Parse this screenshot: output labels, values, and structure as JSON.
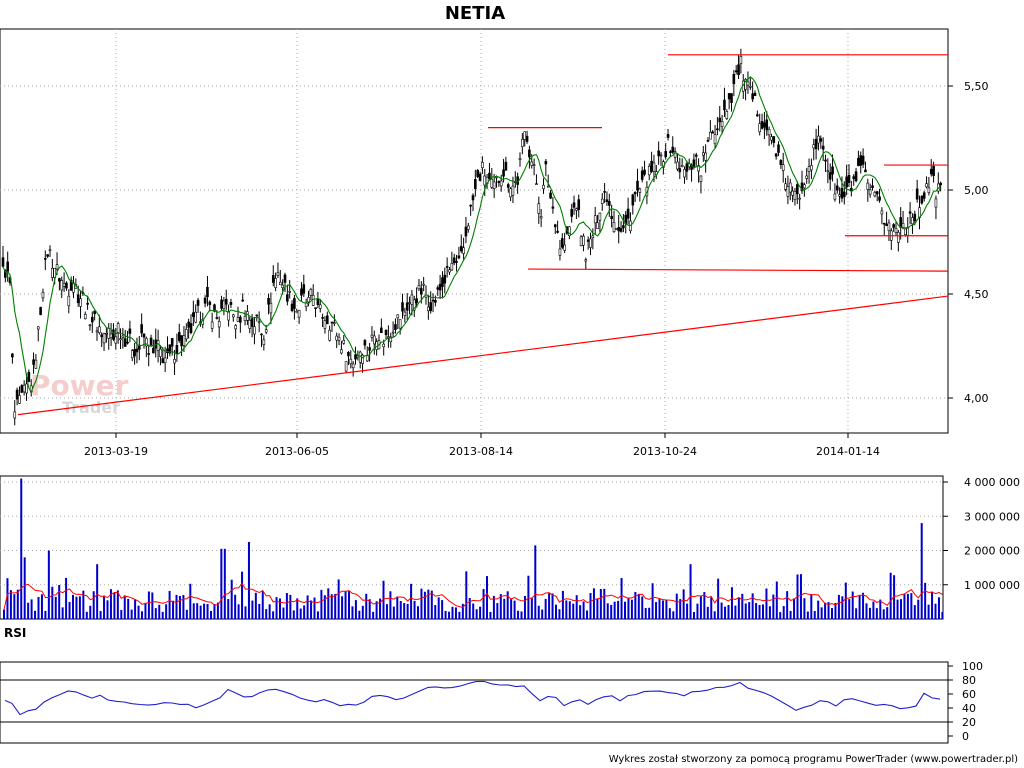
{
  "watermark": {
    "brand_top": "Power",
    "brand_bottom": "Trader"
  },
  "footer": "Wykres został stworzony za pomocą programu PowerTrader (www.powertrader.pl)",
  "colors": {
    "candle": "#000000",
    "ma": "#008000",
    "resistance": "#ff0000",
    "volume": "#0000cc",
    "volume_ma": "#ff0000",
    "rsi": "#2222cc",
    "grid": "#aaaaaa"
  },
  "chart_data": [
    {
      "type": "candlestick",
      "title": "NETIA",
      "x_ticks": [
        "2013-03-19",
        "2013-06-05",
        "2013-08-14",
        "2013-10-24",
        "2014-01-14"
      ],
      "y_ticks": [
        "4,00",
        "4,50",
        "5,00",
        "5,50"
      ],
      "ylim": [
        3.85,
        5.7
      ],
      "grid": true,
      "price_path": [
        [
          0,
          4.58
        ],
        [
          5,
          4.62
        ],
        [
          10,
          4.55
        ],
        [
          14,
          3.92
        ],
        [
          17,
          3.95
        ],
        [
          22,
          4.0
        ],
        [
          27,
          4.05
        ],
        [
          33,
          4.1
        ],
        [
          38,
          4.3
        ],
        [
          43,
          4.55
        ],
        [
          48,
          4.72
        ],
        [
          53,
          4.65
        ],
        [
          58,
          4.6
        ],
        [
          63,
          4.55
        ],
        [
          68,
          4.52
        ],
        [
          73,
          4.58
        ],
        [
          78,
          4.5
        ],
        [
          83,
          4.48
        ],
        [
          88,
          4.4
        ],
        [
          93,
          4.38
        ],
        [
          98,
          4.35
        ],
        [
          103,
          4.3
        ],
        [
          108,
          4.32
        ],
        [
          113,
          4.28
        ],
        [
          118,
          4.35
        ],
        [
          123,
          4.3
        ],
        [
          128,
          4.28
        ],
        [
          133,
          4.25
        ],
        [
          138,
          4.22
        ],
        [
          143,
          4.3
        ],
        [
          148,
          4.25
        ],
        [
          153,
          4.2
        ],
        [
          158,
          4.24
        ],
        [
          163,
          4.2
        ],
        [
          168,
          4.18
        ],
        [
          173,
          4.22
        ],
        [
          178,
          4.25
        ],
        [
          183,
          4.28
        ],
        [
          188,
          4.3
        ],
        [
          193,
          4.35
        ],
        [
          198,
          4.4
        ],
        [
          203,
          4.42
        ],
        [
          208,
          4.45
        ],
        [
          213,
          4.4
        ],
        [
          218,
          4.38
        ],
        [
          223,
          4.42
        ],
        [
          228,
          4.45
        ],
        [
          233,
          4.4
        ],
        [
          238,
          4.35
        ],
        [
          243,
          4.45
        ],
        [
          248,
          4.4
        ],
        [
          253,
          4.35
        ],
        [
          258,
          4.38
        ],
        [
          263,
          4.3
        ],
        [
          268,
          4.4
        ],
        [
          273,
          4.55
        ],
        [
          278,
          4.6
        ],
        [
          283,
          4.55
        ],
        [
          288,
          4.5
        ],
        [
          293,
          4.45
        ],
        [
          298,
          4.42
        ],
        [
          303,
          4.48
        ],
        [
          308,
          4.45
        ],
        [
          313,
          4.5
        ],
        [
          318,
          4.42
        ],
        [
          323,
          4.4
        ],
        [
          328,
          4.38
        ],
        [
          333,
          4.35
        ],
        [
          338,
          4.3
        ],
        [
          343,
          4.25
        ],
        [
          348,
          4.2
        ],
        [
          353,
          4.18
        ],
        [
          358,
          4.22
        ],
        [
          363,
          4.25
        ],
        [
          368,
          4.22
        ],
        [
          373,
          4.3
        ],
        [
          378,
          4.32
        ],
        [
          383,
          4.28
        ],
        [
          388,
          4.3
        ],
        [
          393,
          4.35
        ],
        [
          398,
          4.38
        ],
        [
          403,
          4.4
        ],
        [
          408,
          4.45
        ],
        [
          413,
          4.48
        ],
        [
          418,
          4.5
        ],
        [
          423,
          4.52
        ],
        [
          428,
          4.48
        ],
        [
          433,
          4.45
        ],
        [
          438,
          4.5
        ],
        [
          443,
          4.55
        ],
        [
          448,
          4.6
        ],
        [
          453,
          4.65
        ],
        [
          458,
          4.62
        ],
        [
          463,
          4.7
        ],
        [
          468,
          4.85
        ],
        [
          473,
          4.95
        ],
        [
          478,
          5.05
        ],
        [
          483,
          5.1
        ],
        [
          488,
          5.05
        ],
        [
          493,
          5.0
        ],
        [
          498,
          5.05
        ],
        [
          503,
          5.1
        ],
        [
          508,
          5.05
        ],
        [
          513,
          5.02
        ],
        [
          518,
          5.05
        ],
        [
          522,
          5.2
        ],
        [
          526,
          5.3
        ],
        [
          531,
          5.15
        ],
        [
          536,
          5.05
        ],
        [
          541,
          4.9
        ],
        [
          546,
          5.1
        ],
        [
          551,
          4.95
        ],
        [
          556,
          4.85
        ],
        [
          561,
          4.7
        ],
        [
          566,
          4.75
        ],
        [
          571,
          4.85
        ],
        [
          576,
          4.95
        ],
        [
          581,
          4.8
        ],
        [
          586,
          4.7
        ],
        [
          591,
          4.75
        ],
        [
          596,
          4.85
        ],
        [
          601,
          4.95
        ],
        [
          606,
          5.0
        ],
        [
          611,
          4.9
        ],
        [
          616,
          4.85
        ],
        [
          621,
          4.8
        ],
        [
          626,
          4.82
        ],
        [
          631,
          4.9
        ],
        [
          636,
          4.98
        ],
        [
          641,
          5.0
        ],
        [
          646,
          5.05
        ],
        [
          651,
          5.08
        ],
        [
          656,
          5.1
        ],
        [
          661,
          5.15
        ],
        [
          666,
          5.2
        ],
        [
          671,
          5.22
        ],
        [
          676,
          5.15
        ],
        [
          681,
          5.1
        ],
        [
          686,
          5.08
        ],
        [
          691,
          5.12
        ],
        [
          696,
          5.15
        ],
        [
          701,
          5.1
        ],
        [
          706,
          5.2
        ],
        [
          711,
          5.25
        ],
        [
          716,
          5.3
        ],
        [
          721,
          5.35
        ],
        [
          726,
          5.4
        ],
        [
          731,
          5.45
        ],
        [
          736,
          5.55
        ],
        [
          741,
          5.6
        ],
        [
          746,
          5.5
        ],
        [
          751,
          5.45
        ],
        [
          756,
          5.4
        ],
        [
          761,
          5.35
        ],
        [
          766,
          5.3
        ],
        [
          771,
          5.25
        ],
        [
          776,
          5.2
        ],
        [
          781,
          5.1
        ],
        [
          786,
          5.05
        ],
        [
          791,
          5.0
        ],
        [
          796,
          4.95
        ],
        [
          801,
          5.0
        ],
        [
          806,
          5.1
        ],
        [
          811,
          5.15
        ],
        [
          816,
          5.2
        ],
        [
          821,
          5.25
        ],
        [
          826,
          5.15
        ],
        [
          831,
          5.05
        ],
        [
          836,
          5.0
        ],
        [
          841,
          4.95
        ],
        [
          846,
          4.98
        ],
        [
          851,
          5.02
        ],
        [
          856,
          5.05
        ],
        [
          861,
          5.1
        ],
        [
          866,
          5.05
        ],
        [
          871,
          4.98
        ],
        [
          876,
          4.95
        ],
        [
          881,
          4.9
        ],
        [
          886,
          4.85
        ],
        [
          891,
          4.82
        ],
        [
          896,
          4.8
        ],
        [
          901,
          4.82
        ],
        [
          906,
          4.85
        ],
        [
          911,
          4.88
        ],
        [
          916,
          4.9
        ],
        [
          921,
          4.95
        ],
        [
          926,
          5.02
        ],
        [
          931,
          5.05
        ],
        [
          936,
          5.0
        ],
        [
          942,
          5.0
        ]
      ],
      "resistance_lines": [
        {
          "from": [
            488,
            5.3
          ],
          "to": [
            602,
            5.3
          ]
        },
        {
          "from": [
            668,
            5.65
          ],
          "to": [
            948,
            5.65
          ]
        },
        {
          "from": [
            528,
            4.62
          ],
          "to": [
            948,
            4.61
          ]
        },
        {
          "from": [
            845,
            4.78
          ],
          "to": [
            948,
            4.78
          ]
        },
        {
          "from": [
            884,
            5.12
          ],
          "to": [
            948,
            5.12
          ]
        },
        {
          "from": [
            18,
            3.92
          ],
          "to": [
            948,
            4.49
          ]
        }
      ]
    },
    {
      "type": "bar",
      "title": "",
      "y_ticks": [
        "1 000 000",
        "2 000 000",
        "3 000 000",
        "4 000 000"
      ],
      "ylim": [
        0,
        4300000
      ],
      "peaks": [
        [
          22,
          4100000
        ],
        [
          24,
          1800000
        ],
        [
          50,
          2000000
        ],
        [
          66,
          1200000
        ],
        [
          98,
          1600000
        ],
        [
          223,
          2050000
        ],
        [
          249,
          2250000
        ],
        [
          536,
          2150000
        ],
        [
          691,
          1600000
        ],
        [
          796,
          1300000
        ],
        [
          921,
          2800000
        ],
        [
          931,
          800000
        ]
      ],
      "baseline_range": [
        200000,
        900000
      ],
      "volume_ma_range": [
        300000,
        1100000
      ]
    },
    {
      "type": "line",
      "title": "RSI",
      "y_ticks": [
        "0",
        "20",
        "40",
        "60",
        "80",
        "100"
      ],
      "ylim": [
        0,
        100
      ],
      "reference_lines": [
        20,
        80
      ],
      "series": [
        [
          5,
          52
        ],
        [
          12,
          45
        ],
        [
          20,
          32
        ],
        [
          28,
          35
        ],
        [
          36,
          40
        ],
        [
          44,
          48
        ],
        [
          52,
          55
        ],
        [
          60,
          60
        ],
        [
          68,
          65
        ],
        [
          76,
          62
        ],
        [
          84,
          58
        ],
        [
          92,
          55
        ],
        [
          100,
          60
        ],
        [
          108,
          53
        ],
        [
          116,
          48
        ],
        [
          124,
          50
        ],
        [
          132,
          46
        ],
        [
          140,
          45
        ],
        [
          148,
          44
        ],
        [
          156,
          46
        ],
        [
          164,
          48
        ],
        [
          172,
          46
        ],
        [
          180,
          47
        ],
        [
          188,
          44
        ],
        [
          196,
          42
        ],
        [
          204,
          45
        ],
        [
          212,
          50
        ],
        [
          220,
          55
        ],
        [
          228,
          65
        ],
        [
          236,
          60
        ],
        [
          244,
          56
        ],
        [
          252,
          55
        ],
        [
          260,
          60
        ],
        [
          268,
          66
        ],
        [
          276,
          68
        ],
        [
          284,
          62
        ],
        [
          292,
          58
        ],
        [
          300,
          55
        ],
        [
          308,
          52
        ],
        [
          316,
          50
        ],
        [
          324,
          54
        ],
        [
          332,
          48
        ],
        [
          340,
          42
        ],
        [
          348,
          46
        ],
        [
          356,
          44
        ],
        [
          364,
          50
        ],
        [
          372,
          55
        ],
        [
          380,
          60
        ],
        [
          388,
          56
        ],
        [
          396,
          52
        ],
        [
          404,
          55
        ],
        [
          412,
          60
        ],
        [
          420,
          65
        ],
        [
          428,
          70
        ],
        [
          436,
          72
        ],
        [
          444,
          68
        ],
        [
          452,
          70
        ],
        [
          460,
          72
        ],
        [
          468,
          74
        ],
        [
          476,
          78
        ],
        [
          484,
          80
        ],
        [
          492,
          76
        ],
        [
          500,
          72
        ],
        [
          508,
          74
        ],
        [
          516,
          70
        ],
        [
          524,
          72
        ],
        [
          532,
          62
        ],
        [
          540,
          52
        ],
        [
          548,
          58
        ],
        [
          556,
          54
        ],
        [
          564,
          44
        ],
        [
          572,
          48
        ],
        [
          580,
          52
        ],
        [
          588,
          46
        ],
        [
          596,
          52
        ],
        [
          604,
          55
        ],
        [
          612,
          58
        ],
        [
          620,
          52
        ],
        [
          628,
          56
        ],
        [
          636,
          60
        ],
        [
          644,
          62
        ],
        [
          652,
          64
        ],
        [
          660,
          66
        ],
        [
          668,
          64
        ],
        [
          676,
          60
        ],
        [
          684,
          58
        ],
        [
          692,
          62
        ],
        [
          700,
          64
        ],
        [
          708,
          66
        ],
        [
          716,
          70
        ],
        [
          724,
          68
        ],
        [
          732,
          72
        ],
        [
          740,
          76
        ],
        [
          748,
          68
        ],
        [
          756,
          64
        ],
        [
          764,
          60
        ],
        [
          772,
          55
        ],
        [
          780,
          50
        ],
        [
          788,
          44
        ],
        [
          796,
          38
        ],
        [
          804,
          40
        ],
        [
          812,
          44
        ],
        [
          820,
          50
        ],
        [
          828,
          48
        ],
        [
          836,
          44
        ],
        [
          844,
          50
        ],
        [
          852,
          54
        ],
        [
          860,
          50
        ],
        [
          868,
          46
        ],
        [
          876,
          42
        ],
        [
          884,
          44
        ],
        [
          892,
          42
        ],
        [
          900,
          40
        ],
        [
          908,
          42
        ],
        [
          916,
          44
        ],
        [
          924,
          60
        ],
        [
          932,
          56
        ],
        [
          940,
          54
        ]
      ]
    }
  ]
}
